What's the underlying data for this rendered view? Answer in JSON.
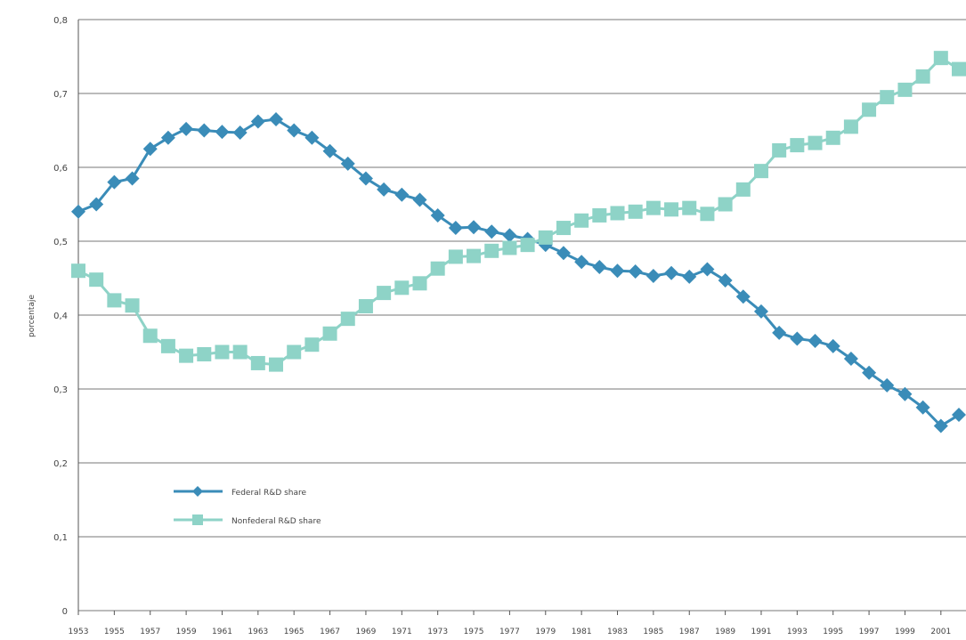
{
  "chart_data": {
    "type": "line",
    "title": "",
    "xlabel": "",
    "ylabel": "porcentaje",
    "ylim": [
      0,
      0.8
    ],
    "xlim": [
      1953,
      2002
    ],
    "grid": true,
    "legend_position": "bottom-left",
    "y_ticks": [
      "0",
      "0,1",
      "0,2",
      "0,3",
      "0,4",
      "0,5",
      "0,6",
      "0,7",
      "0,8"
    ],
    "x_ticks": [
      "1953",
      "1955",
      "1957",
      "1959",
      "1961",
      "1963",
      "1965",
      "1967",
      "1969",
      "1971",
      "1973",
      "1975",
      "1977",
      "1979",
      "1981",
      "1983",
      "1985",
      "1987",
      "1989",
      "1991",
      "1993",
      "1995",
      "1997",
      "1999",
      "2001"
    ],
    "x": [
      1953,
      1954,
      1955,
      1956,
      1957,
      1958,
      1959,
      1960,
      1961,
      1962,
      1963,
      1964,
      1965,
      1966,
      1967,
      1968,
      1969,
      1970,
      1971,
      1972,
      1973,
      1974,
      1975,
      1976,
      1977,
      1978,
      1979,
      1980,
      1981,
      1982,
      1983,
      1984,
      1985,
      1986,
      1987,
      1988,
      1989,
      1990,
      1991,
      1992,
      1993,
      1994,
      1995,
      1996,
      1997,
      1998,
      1999,
      2000,
      2001,
      2002
    ],
    "series": [
      {
        "name": "Federal R&D share",
        "color": "#3a8cb8",
        "marker": "diamond",
        "values": [
          0.54,
          0.55,
          0.58,
          0.585,
          0.625,
          0.64,
          0.652,
          0.65,
          0.648,
          0.647,
          0.662,
          0.665,
          0.65,
          0.64,
          0.622,
          0.605,
          0.585,
          0.57,
          0.563,
          0.556,
          0.535,
          0.518,
          0.519,
          0.513,
          0.508,
          0.503,
          0.495,
          0.484,
          0.472,
          0.465,
          0.46,
          0.459,
          0.453,
          0.457,
          0.452,
          0.462,
          0.447,
          0.425,
          0.405,
          0.376,
          0.368,
          0.365,
          0.358,
          0.341,
          0.322,
          0.305,
          0.293,
          0.275,
          0.25,
          0.265
        ]
      },
      {
        "name": "Nonfederal R&D share",
        "color": "#8ed3c7",
        "marker": "square",
        "values": [
          0.46,
          0.448,
          0.42,
          0.413,
          0.372,
          0.358,
          0.345,
          0.347,
          0.35,
          0.35,
          0.335,
          0.333,
          0.35,
          0.36,
          0.375,
          0.395,
          0.412,
          0.43,
          0.437,
          0.443,
          0.463,
          0.479,
          0.48,
          0.487,
          0.491,
          0.495,
          0.505,
          0.518,
          0.528,
          0.535,
          0.538,
          0.54,
          0.545,
          0.543,
          0.545,
          0.537,
          0.55,
          0.57,
          0.595,
          0.623,
          0.63,
          0.633,
          0.64,
          0.655,
          0.678,
          0.695,
          0.705,
          0.723,
          0.748,
          0.733
        ]
      }
    ]
  }
}
